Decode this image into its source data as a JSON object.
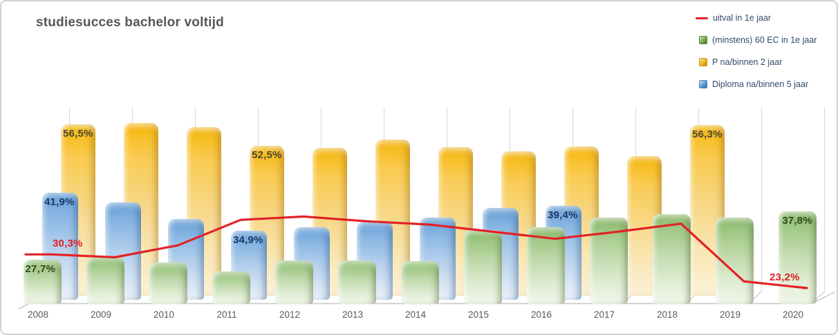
{
  "title": "studiesucces bachelor voltijd",
  "legend": {
    "position": "top-right",
    "items": [
      {
        "label": "uitval in 1e jaar",
        "marker": "line",
        "color": "#e32126"
      },
      {
        "label": "(minstens) 60 EC in 1e jaar",
        "marker": "square",
        "color": "#70ad47"
      },
      {
        "label": "P na/binnen 2 jaar",
        "marker": "square",
        "color": "#f0b41e"
      },
      {
        "label": "Diploma na/binnen 5 jaar",
        "marker": "square",
        "color": "#5b9bd5"
      }
    ]
  },
  "chart_data": {
    "type": "bar",
    "subtype": "3d-clustered-bars-with-line-overlay",
    "title": "studiesucces bachelor voltijd",
    "xlabel": "",
    "ylabel": "",
    "value_unit": "%",
    "value_axis_visible": false,
    "grid": "vertical-category-separators-only",
    "legend_position": "top-right",
    "categories": [
      2008,
      2009,
      2010,
      2011,
      2012,
      2013,
      2014,
      2015,
      2016,
      2017,
      2018,
      2019,
      2020
    ],
    "series": [
      {
        "id": "uitval",
        "name": "uitval in 1e jaar",
        "type": "line",
        "color": "#e32126",
        "values": [
          30.3,
          29.7,
          32.2,
          37.6,
          38.3,
          37.3,
          36.6,
          35.1,
          33.6,
          35.1,
          36.8,
          24.6,
          23.2
        ]
      },
      {
        "id": "ec60",
        "name": "(minstens) 60 EC in 1e jaar",
        "type": "bar",
        "color": "#70ad47",
        "values": [
          27.7,
          28.2,
          27.1,
          25.2,
          27.5,
          27.5,
          27.3,
          33.9,
          34.5,
          36.6,
          37.2,
          36.5,
          37.8
        ]
      },
      {
        "id": "p2",
        "name": "P na/binnen 2 jaar",
        "type": "bar",
        "color": "#f0b41e",
        "values": [
          56.5,
          56.8,
          56.0,
          52.5,
          52.1,
          53.7,
          52.2,
          51.5,
          52.4,
          50.5,
          56.3,
          null,
          null
        ]
      },
      {
        "id": "dip5",
        "name": "Diploma na/binnen 5 jaar",
        "type": "bar",
        "color": "#5b9bd5",
        "values": [
          41.9,
          40.1,
          37.0,
          34.9,
          35.5,
          36.5,
          37.3,
          39.0,
          39.4,
          null,
          null,
          null,
          null
        ]
      }
    ],
    "data_labels": [
      {
        "series": "p2",
        "year": 2008,
        "text": "56,5%"
      },
      {
        "series": "dip5",
        "year": 2008,
        "text": "41,9%"
      },
      {
        "series": "uitval",
        "year": 2008,
        "text": "30,3%"
      },
      {
        "series": "ec60",
        "year": 2008,
        "text": "27,7%"
      },
      {
        "series": "p2",
        "year": 2011,
        "text": "52,5%"
      },
      {
        "series": "dip5",
        "year": 2011,
        "text": "34,9%"
      },
      {
        "series": "dip5",
        "year": 2016,
        "text": "39,4%"
      },
      {
        "series": "p2",
        "year": 2018,
        "text": "56,3%"
      },
      {
        "series": "ec60",
        "year": 2020,
        "text": "37,8%"
      },
      {
        "series": "uitval",
        "year": 2020,
        "text": "23,2%"
      }
    ]
  }
}
